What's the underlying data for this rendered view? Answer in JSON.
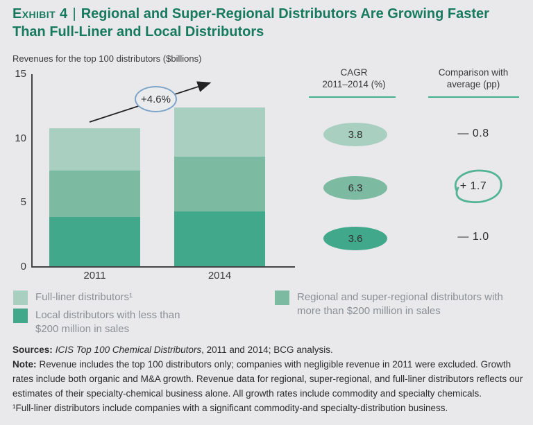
{
  "header": {
    "exhibit_label": "Exhibit 4",
    "divider": "|",
    "title": "Regional and Super-Regional Distributors Are Growing Faster Than Full-Liner and Local Distributors"
  },
  "colors": {
    "background": "#e9e9eb",
    "title_green": "#177a5e",
    "bar_light": "#a9cfc0",
    "bar_mid": "#7cbaa2",
    "bar_dark": "#41a88c",
    "underline_green": "#45b08e",
    "annotation_circle_blue": "#7da3c8",
    "sketch_circle_green": "#52b494",
    "axis": "#444444",
    "legend_text": "#8a8f96"
  },
  "chart_data": {
    "type": "bar",
    "stacked": true,
    "title": "Revenues for the top 100 distributors ($billions)",
    "categories": [
      "2011",
      "2014"
    ],
    "series": [
      {
        "name": "Local distributors with less than $200 million in sales",
        "color": "#41a88c",
        "values": [
          3.9,
          4.3
        ]
      },
      {
        "name": "Regional and super-regional distributors with more than $200 million in sales",
        "color": "#7cbaa2",
        "values": [
          3.6,
          4.3
        ]
      },
      {
        "name": "Full-liner distributors",
        "color": "#a9cfc0",
        "values": [
          3.3,
          3.8
        ]
      }
    ],
    "totals": [
      10.8,
      12.4
    ],
    "ylim": [
      0,
      15
    ],
    "yticks": [
      0,
      5,
      10,
      15
    ],
    "grid": false,
    "annotation": "+4.6%",
    "legend_position": "bottom"
  },
  "right_panel": {
    "cagr": {
      "header_line1": "CAGR",
      "header_line2": "2011–2014 (%)",
      "rows": [
        {
          "value": "3.8"
        },
        {
          "value": "6.3"
        },
        {
          "value": "3.6"
        }
      ]
    },
    "comparison": {
      "header_line1": "Comparison with",
      "header_line2": "average (pp)",
      "rows": [
        {
          "value": "— 0.8",
          "circled": false
        },
        {
          "value": "+ 1.7",
          "circled": true
        },
        {
          "value": "— 1.0",
          "circled": false
        }
      ]
    }
  },
  "legend": {
    "items": [
      {
        "label": "Full-liner distributors¹"
      },
      {
        "label": "Local distributors with less than $200 million in sales"
      },
      {
        "label": "Regional and super-regional distributors with more than $200 million in sales"
      }
    ]
  },
  "footer": {
    "sources_label": "Sources:",
    "sources_italic": "ICIS Top 100 Chemical Distributors",
    "sources_rest": ", 2011 and 2014; BCG analysis.",
    "note_label": "Note:",
    "note_text": "Revenue includes the top 100 distributors only; companies with negligible revenue in 2011 were excluded. Growth rates include both organic and M&A growth. Revenue data for regional, super-regional, and full-liner distributors reflects our estimates of their specialty-chemical business alone. All growth rates include commodity and specialty chemicals.",
    "footnote": "¹Full-liner distributors include companies with a significant commodity-and specialty-distribution business."
  }
}
